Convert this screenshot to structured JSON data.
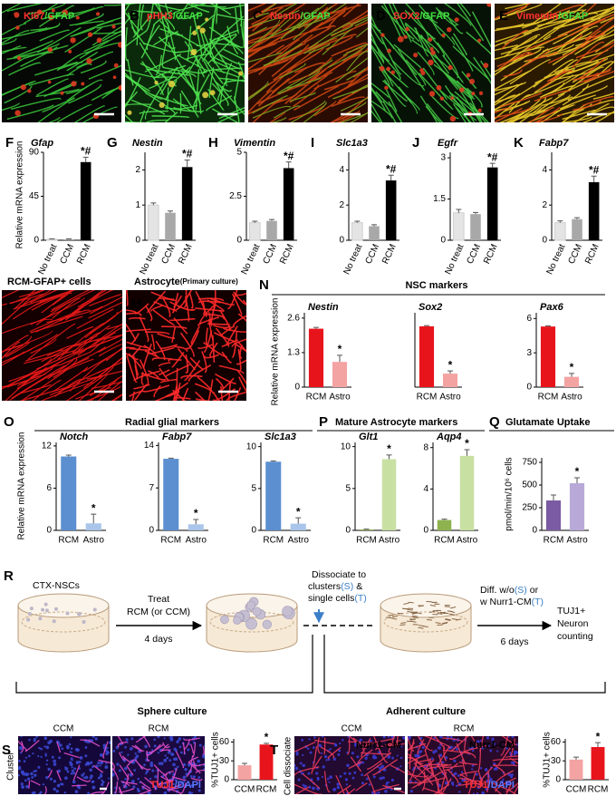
{
  "images": [
    {
      "letter": "A",
      "stain": "Ki67",
      "counterstain": "/GFAP"
    },
    {
      "letter": "B",
      "stain": "pHH3",
      "counterstain": "/GFAP"
    },
    {
      "letter": "C",
      "stain": "Nestin",
      "counterstain": "/GFAP"
    },
    {
      "letter": "D",
      "stain": "SOX2",
      "counterstain": "/GFAP"
    },
    {
      "letter": "E",
      "stain": "Vimentin",
      "counterstain": "/GFAP"
    }
  ],
  "culture_images": [
    {
      "letter": "L",
      "caption": "RCM-GFAP+ cells"
    },
    {
      "letter": "M",
      "caption": "Astrocyte",
      "caption_note": "(Primary culture)"
    }
  ],
  "schematic": {
    "letter": "R",
    "source": "CTX-NSCs",
    "step1": "Treat",
    "step1_condition": "RCM (or CCM)",
    "step1_time": "4 days",
    "step2": "Dissociate to",
    "step2_a": "clusters",
    "step2_a_code": "(S)",
    "step2_joiner": "&",
    "step2_b": "single cells",
    "step2_b_code": "(T)",
    "step3": "Diff. w/o",
    "step3_a_code": "(S)",
    "step3_joiner": "or",
    "step3_b": "w Nurr1-CM",
    "step3_b_code": "(T)",
    "step3_time": "6 days",
    "readout": [
      "TUJ1+",
      "Neuron",
      "counting"
    ],
    "phase_1": "Sphere culture",
    "phase_2": "Adherent culture"
  },
  "panel_S": {
    "letter": "S",
    "columns": [
      "CCM",
      "RCM"
    ],
    "row_label": "Cluster",
    "stain": "TUJ1",
    "counterstain": "/DAPI"
  },
  "panel_T": {
    "letter": "T",
    "columns": [
      "CCM",
      "RCM"
    ],
    "row_label": "Cell dissociate",
    "overlay": [
      "Nurr1-CM",
      "Nurr1-CM"
    ],
    "stain": "TUJ1",
    "counterstain": "/DAPI"
  },
  "chart_data": [
    {
      "type": "bar",
      "letter": "F",
      "title": "Gfap",
      "ylabel": "Relative mRNA expression",
      "categories": [
        "No treat",
        "CCM",
        "RCM"
      ],
      "colors": [
        "#e4e4e4",
        "#a8a8a8",
        "#000000"
      ],
      "values": [
        1,
        1,
        80
      ],
      "errors": [
        0.4,
        0.4,
        5
      ],
      "significance": [
        null,
        null,
        "*#"
      ],
      "ylim": [
        0,
        90
      ],
      "yticks": [
        0,
        45,
        90
      ]
    },
    {
      "type": "bar",
      "letter": "G",
      "title": "Nestin",
      "categories": [
        "No treat",
        "CCM",
        "RCM"
      ],
      "colors": [
        "#e4e4e4",
        "#a8a8a8",
        "#000000"
      ],
      "values": [
        1,
        0.78,
        2.08
      ],
      "errors": [
        0.06,
        0.05,
        0.2
      ],
      "significance": [
        null,
        null,
        "*#"
      ],
      "ylim": [
        0,
        2.5
      ],
      "yticks": [
        0,
        1,
        2
      ]
    },
    {
      "type": "bar",
      "letter": "H",
      "title": "Vimentin",
      "categories": [
        "No treat",
        "CCM",
        "RCM"
      ],
      "colors": [
        "#e4e4e4",
        "#a8a8a8",
        "#000000"
      ],
      "values": [
        1,
        1.1,
        4.1
      ],
      "errors": [
        0.08,
        0.08,
        0.35
      ],
      "significance": [
        null,
        null,
        "*#"
      ],
      "ylim": [
        0,
        5
      ],
      "yticks": [
        0,
        2.5,
        5
      ]
    },
    {
      "type": "bar",
      "letter": "I",
      "title": "Slc1a3",
      "categories": [
        "No treat",
        "CCM",
        "RCM"
      ],
      "colors": [
        "#e4e4e4",
        "#a8a8a8",
        "#000000"
      ],
      "values": [
        1,
        0.8,
        3.4
      ],
      "errors": [
        0.08,
        0.08,
        0.3
      ],
      "significance": [
        null,
        null,
        "*#"
      ],
      "ylim": [
        0,
        5
      ],
      "yticks": [
        0,
        2,
        4
      ]
    },
    {
      "type": "bar",
      "letter": "J",
      "title": "Egfr",
      "categories": [
        "No treat",
        "CCM",
        "RCM"
      ],
      "colors": [
        "#e4e4e4",
        "#a8a8a8",
        "#000000"
      ],
      "values": [
        1,
        0.95,
        2.65
      ],
      "errors": [
        0.12,
        0.06,
        0.15
      ],
      "significance": [
        null,
        null,
        "*#"
      ],
      "ylim": [
        0,
        3.2
      ],
      "yticks": [
        0,
        1.5,
        3
      ]
    },
    {
      "type": "bar",
      "letter": "K",
      "title": "Fabp7",
      "categories": [
        "No treat",
        "CCM",
        "RCM"
      ],
      "colors": [
        "#e4e4e4",
        "#a8a8a8",
        "#000000"
      ],
      "values": [
        1,
        1.2,
        3.3
      ],
      "errors": [
        0.1,
        0.08,
        0.35
      ],
      "significance": [
        null,
        null,
        "*#"
      ],
      "ylim": [
        0,
        5
      ],
      "yticks": [
        0,
        2,
        4
      ]
    },
    {
      "type": "bar",
      "letter": "N",
      "group_title": "NSC markers",
      "ylabel": "Relative mRNA expression",
      "title": "Nestin",
      "categories": [
        "RCM",
        "Astro"
      ],
      "colors": [
        "#e8141c",
        "#f4a3a3"
      ],
      "values": [
        2.2,
        0.95
      ],
      "errors": [
        0.05,
        0.25
      ],
      "significance": [
        null,
        "*"
      ],
      "ylim": [
        0,
        2.8
      ],
      "yticks": [
        0,
        1.3,
        2.6
      ]
    },
    {
      "type": "bar",
      "title": "Sox2",
      "categories": [
        "RCM",
        "Astro"
      ],
      "colors": [
        "#e8141c",
        "#f4a3a3"
      ],
      "values": [
        4.5,
        1.0
      ],
      "errors": [
        0.05,
        0.2
      ],
      "significance": [
        null,
        "*"
      ],
      "ylim": [
        0,
        5.5
      ]
    },
    {
      "type": "bar",
      "title": "Pax6",
      "categories": [
        "RCM",
        "Astro"
      ],
      "colors": [
        "#e8141c",
        "#f4a3a3"
      ],
      "values": [
        5.3,
        0.9
      ],
      "errors": [
        0.05,
        0.3
      ],
      "significance": [
        null,
        "*"
      ],
      "ylim": [
        0,
        6.5
      ],
      "yticks": [
        0,
        3,
        6
      ]
    },
    {
      "type": "bar",
      "letter": "O",
      "group_title": "Radial glial markers",
      "ylabel": "Relative mRNA expression",
      "title": "Notch",
      "categories": [
        "RCM",
        "Astro"
      ],
      "colors": [
        "#5b8fd0",
        "#a9c5ea"
      ],
      "values": [
        10.5,
        1.0
      ],
      "errors": [
        0.2,
        1.3
      ],
      "significance": [
        null,
        "*"
      ],
      "ylim": [
        0,
        12.5
      ],
      "yticks": [
        0,
        6,
        12
      ]
    },
    {
      "type": "bar",
      "title": "Fabp7",
      "categories": [
        "RCM",
        "Astro"
      ],
      "colors": [
        "#5b8fd0",
        "#a9c5ea"
      ],
      "values": [
        11.8,
        1.0
      ],
      "errors": [
        0.1,
        0.8
      ],
      "significance": [
        null,
        "*"
      ],
      "ylim": [
        0,
        14.5
      ],
      "yticks": [
        0,
        7,
        14
      ]
    },
    {
      "type": "bar",
      "title": "Slc1a3",
      "categories": [
        "RCM",
        "Astro"
      ],
      "colors": [
        "#5b8fd0",
        "#a9c5ea"
      ],
      "values": [
        8.2,
        0.8
      ],
      "errors": [
        0.1,
        0.7
      ],
      "significance": [
        null,
        "*"
      ],
      "ylim": [
        0,
        10.5
      ],
      "yticks": [
        0,
        5,
        10
      ]
    },
    {
      "type": "bar",
      "letter": "P",
      "group_title": "Mature Astrocyte markers",
      "title": "Glt1",
      "categories": [
        "RCM",
        "Astro"
      ],
      "colors": [
        "#8db24e",
        "#c9e0a3"
      ],
      "values": [
        0.1,
        8.5
      ],
      "errors": [
        0.05,
        0.5
      ],
      "significance": [
        null,
        "*"
      ],
      "ylim": [
        0,
        10.5
      ],
      "yticks": [
        0,
        5,
        10
      ]
    },
    {
      "type": "bar",
      "title": "Aqp4",
      "categories": [
        "RCM",
        "Astro"
      ],
      "colors": [
        "#8db24e",
        "#c9e0a3"
      ],
      "values": [
        1.0,
        7.2
      ],
      "errors": [
        0.08,
        0.6
      ],
      "significance": [
        null,
        "*"
      ],
      "ylim": [
        0,
        8.5
      ],
      "yticks": [
        0,
        4,
        8
      ]
    },
    {
      "type": "bar",
      "letter": "Q",
      "group_title": "Glutamate Uptake",
      "ylabel": "pmol/min/10⁶ cells",
      "categories": [
        "RCM",
        "Astro"
      ],
      "colors": [
        "#7b5ba3",
        "#b9a9d9"
      ],
      "values": [
        330,
        520
      ],
      "errors": [
        60,
        60
      ],
      "significance": [
        null,
        "*"
      ],
      "ylim": [
        0,
        800
      ],
      "yticks": [
        0,
        250,
        500,
        750
      ]
    },
    {
      "type": "bar",
      "ylabel": "%TUJ1+ cells",
      "categories": [
        "CCM",
        "RCM"
      ],
      "colors": [
        "#f4a3a3",
        "#e8141c"
      ],
      "values": [
        23,
        56
      ],
      "errors": [
        3,
        2
      ],
      "significance": [
        null,
        "*"
      ],
      "ylim": [
        0,
        65
      ],
      "yticks": [
        0,
        30,
        60
      ]
    },
    {
      "type": "bar",
      "ylabel": "%TUJ1+ cells",
      "categories": [
        "CCM",
        "RCM"
      ],
      "colors": [
        "#f4a3a3",
        "#e8141c"
      ],
      "values": [
        32,
        52
      ],
      "errors": [
        4,
        7
      ],
      "significance": [
        null,
        "*"
      ],
      "ylim": [
        0,
        65
      ],
      "yticks": [
        0,
        30,
        60
      ]
    }
  ]
}
